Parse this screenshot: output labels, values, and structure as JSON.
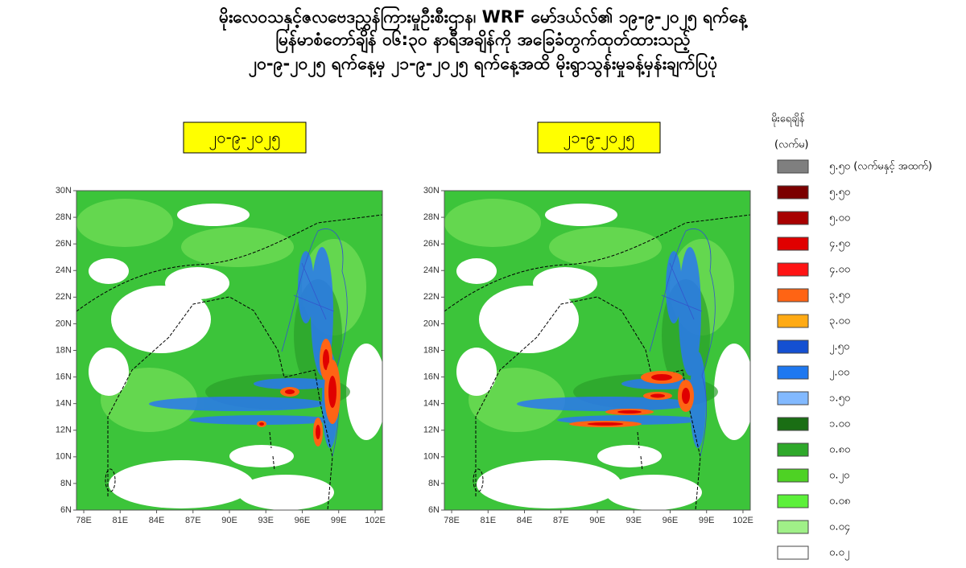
{
  "title_lines": [
    "မိုးလေဝသနှင့်ဇလဗေဒညွှန်ကြားမှုဦးစီးဌာန၊ WRF မော်ဒယ်လ်၏ ၁၉-၉-၂၀၂၅ ရက်နေ့",
    "မြန်မာစံတော်ချိန် ၀၆:၃၀ နာရီအချိန်ကို အခြေခံတွက်ထုတ်ထားသည့်",
    "၂၀-၉-၂၀၂၅ ရက်နေ့မှ ၂၁-၉-၂၀၂၅ ရက်နေ့အထိ မိုးရွာသွန်းမှုခန့်မှန်းချက်ပြပုံ"
  ],
  "maps": [
    {
      "date_label": "၂၀-၉-၂၀၂၅",
      "xlim": [
        77.4,
        102.6
      ],
      "ylim": [
        6,
        30
      ],
      "lat_ticks": [
        {
          "value": 6,
          "label": "6N"
        },
        {
          "value": 8,
          "label": "8N"
        },
        {
          "value": 10,
          "label": "10N"
        },
        {
          "value": 12,
          "label": "12N"
        },
        {
          "value": 14,
          "label": "14N"
        },
        {
          "value": 16,
          "label": "16N"
        },
        {
          "value": 18,
          "label": "18N"
        },
        {
          "value": 20,
          "label": "20N"
        },
        {
          "value": 22,
          "label": "22N"
        },
        {
          "value": 24,
          "label": "24N"
        },
        {
          "value": 26,
          "label": "26N"
        },
        {
          "value": 28,
          "label": "28N"
        },
        {
          "value": 30,
          "label": "30N"
        }
      ],
      "lon_ticks": [
        {
          "value": 78,
          "label": "78E"
        },
        {
          "value": 81,
          "label": "81E"
        },
        {
          "value": 84,
          "label": "84E"
        },
        {
          "value": 87,
          "label": "87E"
        },
        {
          "value": 90,
          "label": "90E"
        },
        {
          "value": 93,
          "label": "93E"
        },
        {
          "value": 96,
          "label": "96E"
        },
        {
          "value": 99,
          "label": "99E"
        },
        {
          "value": 102,
          "label": "102E"
        }
      ]
    },
    {
      "date_label": "၂၁-၉-၂၀၂၅",
      "xlim": [
        77.4,
        102.6
      ],
      "ylim": [
        6,
        30
      ],
      "lat_ticks": [
        {
          "value": 6,
          "label": "6N"
        },
        {
          "value": 8,
          "label": "8N"
        },
        {
          "value": 10,
          "label": "10N"
        },
        {
          "value": 12,
          "label": "12N"
        },
        {
          "value": 14,
          "label": "14N"
        },
        {
          "value": 16,
          "label": "16N"
        },
        {
          "value": 18,
          "label": "18N"
        },
        {
          "value": 20,
          "label": "20N"
        },
        {
          "value": 22,
          "label": "22N"
        },
        {
          "value": 24,
          "label": "24N"
        },
        {
          "value": 26,
          "label": "26N"
        },
        {
          "value": 28,
          "label": "28N"
        },
        {
          "value": 30,
          "label": "30N"
        }
      ],
      "lon_ticks": [
        {
          "value": 78,
          "label": "78E"
        },
        {
          "value": 81,
          "label": "81E"
        },
        {
          "value": 84,
          "label": "84E"
        },
        {
          "value": 87,
          "label": "87E"
        },
        {
          "value": 90,
          "label": "90E"
        },
        {
          "value": 93,
          "label": "93E"
        },
        {
          "value": 96,
          "label": "96E"
        },
        {
          "value": 99,
          "label": "99E"
        },
        {
          "value": 102,
          "label": "102E"
        }
      ]
    }
  ],
  "legend": {
    "title": "မိုးရေချိန်",
    "unit": "(လက်မ)",
    "items": [
      {
        "label": "၅.၅၀ (လက်မနှင့် အထက်)",
        "color": "#7f7f7f"
      },
      {
        "label": "၅.၅၀",
        "color": "#7b0000"
      },
      {
        "label": "၅.၀၀",
        "color": "#a80000"
      },
      {
        "label": "၄.၅၀",
        "color": "#e00000"
      },
      {
        "label": "၄.၀၀",
        "color": "#ff1414"
      },
      {
        "label": "၃.၅၀",
        "color": "#ff6414"
      },
      {
        "label": "၃.၀၀",
        "color": "#ffaa14"
      },
      {
        "label": "၂.၅၀",
        "color": "#1450d2"
      },
      {
        "label": "၂.၀၀",
        "color": "#1e78f0"
      },
      {
        "label": "၁.၅၀",
        "color": "#82b9ff"
      },
      {
        "label": "၁.၀၀",
        "color": "#1a6e14"
      },
      {
        "label": "၀.၈၀",
        "color": "#2ea82a"
      },
      {
        "label": "၀.၂၀",
        "color": "#4ed224"
      },
      {
        "label": "၀.၀၈",
        "color": "#5cf03a"
      },
      {
        "label": "၀.၀၄",
        "color": "#a0f088"
      },
      {
        "label": "၀.၀၂",
        "color": "#ffffff"
      }
    ]
  }
}
